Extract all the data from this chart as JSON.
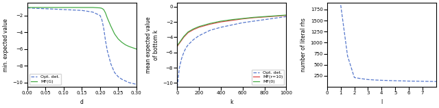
{
  "plot1": {
    "ylabel": "min. expected value",
    "xlabel": "d",
    "xlim": [
      0.0,
      0.3
    ],
    "ylim": [
      -10.5,
      -0.5
    ],
    "yticks": [
      -2,
      -4,
      -6,
      -8,
      -10
    ],
    "xticks": [
      0.0,
      0.05,
      0.1,
      0.15,
      0.2,
      0.25,
      0.3
    ],
    "xtick_labels": [
      "0.0​0",
      "0.05",
      "0.10",
      "0.15",
      "0.20",
      "0.25",
      "0.30"
    ],
    "blue_label": "Opt. det.",
    "green_label": "MF(G)",
    "blue_x": [
      0.0,
      0.02,
      0.05,
      0.1,
      0.15,
      0.18,
      0.2,
      0.205,
      0.21,
      0.215,
      0.22,
      0.23,
      0.24,
      0.25,
      0.26,
      0.27,
      0.28,
      0.29,
      0.3
    ],
    "blue_y": [
      -1.1,
      -1.15,
      -1.2,
      -1.3,
      -1.4,
      -1.6,
      -2.0,
      -2.5,
      -3.5,
      -5.0,
      -6.2,
      -7.8,
      -8.8,
      -9.3,
      -9.6,
      -9.8,
      -10.0,
      -10.1,
      -10.2
    ],
    "green_x": [
      0.0,
      0.02,
      0.05,
      0.1,
      0.15,
      0.18,
      0.2,
      0.205,
      0.21,
      0.215,
      0.22,
      0.23,
      0.24,
      0.25,
      0.26,
      0.27,
      0.28,
      0.29,
      0.3
    ],
    "green_y": [
      -1.05,
      -1.05,
      -1.05,
      -1.05,
      -1.05,
      -1.05,
      -1.1,
      -1.15,
      -1.3,
      -1.7,
      -2.3,
      -3.3,
      -4.2,
      -4.8,
      -5.2,
      -5.5,
      -5.7,
      -5.85,
      -6.0
    ]
  },
  "plot2": {
    "ylabel": "mean expected value\nof bottom k",
    "xlabel": "k",
    "xlim": [
      0,
      1000
    ],
    "ylim": [
      -10.5,
      0.5
    ],
    "yticks": [
      0,
      -2,
      -4,
      -6,
      -8,
      -10
    ],
    "xticks": [
      0,
      200,
      400,
      600,
      800,
      1000
    ],
    "blue_label": "Opt. det.",
    "red_label": "MF(r=10)",
    "green_label": "MF(0)",
    "k_vals": [
      1,
      3,
      5,
      10,
      20,
      40,
      60,
      80,
      100,
      150,
      200,
      300,
      400,
      500,
      600,
      700,
      800,
      900,
      1000
    ],
    "blue_y": [
      -10.5,
      -10.3,
      -10.0,
      -9.2,
      -8.0,
      -6.8,
      -6.0,
      -5.4,
      -5.0,
      -4.3,
      -3.8,
      -3.1,
      -2.7,
      -2.4,
      -2.1,
      -1.9,
      -1.7,
      -1.5,
      -1.3
    ],
    "red_y": [
      -5.2,
      -5.15,
      -5.1,
      -5.0,
      -4.8,
      -4.4,
      -4.0,
      -3.7,
      -3.4,
      -3.0,
      -2.7,
      -2.3,
      -2.0,
      -1.8,
      -1.6,
      -1.45,
      -1.35,
      -1.25,
      -1.15
    ],
    "green_y": [
      -5.1,
      -5.05,
      -5.0,
      -4.9,
      -4.7,
      -4.3,
      -3.9,
      -3.6,
      -3.3,
      -2.9,
      -2.6,
      -2.2,
      -1.9,
      -1.7,
      -1.55,
      -1.4,
      -1.3,
      -1.2,
      -1.1
    ]
  },
  "plot3": {
    "ylabel": "number of literal rhs",
    "xlabel": "l",
    "xlim": [
      0,
      8
    ],
    "ylim": [
      0,
      1900
    ],
    "yticks": [
      250,
      500,
      750,
      1000,
      1250,
      1500,
      1750
    ],
    "xticks": [
      0,
      1,
      2,
      3,
      4,
      5,
      6,
      7
    ],
    "l_vals": [
      1,
      1.5,
      2,
      2.5,
      3,
      3.5,
      4,
      5,
      6,
      7,
      8
    ],
    "rhs_vals": [
      1850,
      700,
      210,
      185,
      165,
      155,
      148,
      138,
      130,
      125,
      120
    ]
  },
  "blue_color": "#5577CC",
  "red_color": "#DD4444",
  "green_color": "#44AA44",
  "fontsize": 5.5
}
